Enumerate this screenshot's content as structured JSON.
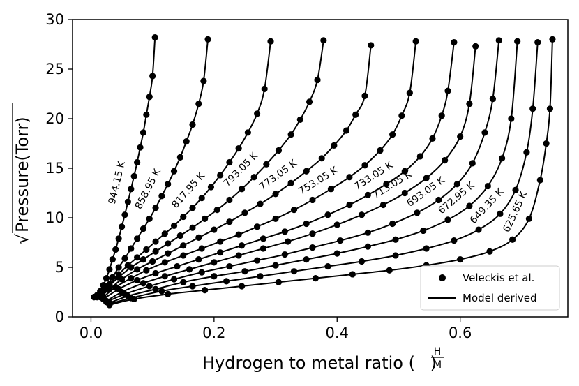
{
  "chart_data": {
    "type": "scatter",
    "title": "",
    "xlabel_prefix": "Hydrogen to metal ratio (",
    "xlabel_frac_num": "H",
    "xlabel_frac_den": "M",
    "xlabel_suffix": ")",
    "ylabel_radical": "√",
    "ylabel_body": "Pressure(Torr)",
    "xlim": [
      -0.03,
      0.775
    ],
    "ylim": [
      0,
      30
    ],
    "x_ticks": [
      0.0,
      0.2,
      0.4,
      0.6
    ],
    "x_tick_labels": [
      "0.0",
      "0.2",
      "0.4",
      "0.6"
    ],
    "y_ticks": [
      0,
      5,
      10,
      15,
      20,
      25,
      30
    ],
    "y_tick_labels": [
      "0",
      "5",
      "10",
      "15",
      "20",
      "25",
      "30"
    ],
    "grid": false,
    "legend": {
      "placement": "lower-right",
      "entries": [
        {
          "label": "Veleckis et al.",
          "marker": "circle"
        },
        {
          "label": "Model derived",
          "marker": "line"
        }
      ]
    },
    "series": [
      {
        "name": "944.15 K",
        "x": [
          0.005,
          0.01,
          0.015,
          0.02,
          0.025,
          0.03,
          0.035,
          0.04,
          0.045,
          0.05,
          0.055,
          0.06,
          0.065,
          0.07,
          0.075,
          0.08,
          0.085,
          0.09,
          0.095,
          0.1,
          0.104
        ],
        "y": [
          2.0,
          2.2,
          2.6,
          3.2,
          3.9,
          4.8,
          5.8,
          6.8,
          7.9,
          9.1,
          10.3,
          11.6,
          12.9,
          14.2,
          15.6,
          17.1,
          18.6,
          20.4,
          22.2,
          24.3,
          28.2
        ]
      },
      {
        "name": "858.95 K",
        "x": [
          0.005,
          0.015,
          0.025,
          0.035,
          0.045,
          0.055,
          0.065,
          0.075,
          0.085,
          0.095,
          0.105,
          0.115,
          0.125,
          0.135,
          0.145,
          0.155,
          0.165,
          0.175,
          0.183,
          0.19
        ],
        "y": [
          2.0,
          2.3,
          3.1,
          4.0,
          5.0,
          5.9,
          6.9,
          7.9,
          8.9,
          9.9,
          11.0,
          12.2,
          13.4,
          14.7,
          16.1,
          17.7,
          19.4,
          21.5,
          23.8,
          28.0
        ]
      },
      {
        "name": "817.95 K",
        "x": [
          0.01,
          0.02,
          0.03,
          0.045,
          0.06,
          0.075,
          0.09,
          0.105,
          0.12,
          0.135,
          0.15,
          0.165,
          0.18,
          0.195,
          0.21,
          0.225,
          0.24,
          0.255,
          0.27,
          0.282,
          0.292
        ],
        "y": [
          2.0,
          2.6,
          3.3,
          4.3,
          5.2,
          6.0,
          6.8,
          7.6,
          8.4,
          9.2,
          10.1,
          11.0,
          12.0,
          13.1,
          14.3,
          15.6,
          17.0,
          18.6,
          20.5,
          23.0,
          27.8
        ]
      },
      {
        "name": "793.05 K",
        "x": [
          0.01,
          0.025,
          0.045,
          0.065,
          0.085,
          0.105,
          0.125,
          0.145,
          0.165,
          0.185,
          0.205,
          0.225,
          0.245,
          0.265,
          0.285,
          0.305,
          0.325,
          0.34,
          0.355,
          0.368,
          0.378
        ],
        "y": [
          2.0,
          2.9,
          4.0,
          5.0,
          5.8,
          6.6,
          7.4,
          8.2,
          9.0,
          9.9,
          10.8,
          11.8,
          12.9,
          14.1,
          15.4,
          16.8,
          18.4,
          19.9,
          21.7,
          23.9,
          27.9
        ]
      },
      {
        "name": "773.05 K",
        "x": [
          0.015,
          0.03,
          0.05,
          0.075,
          0.1,
          0.125,
          0.15,
          0.175,
          0.2,
          0.225,
          0.25,
          0.275,
          0.3,
          0.325,
          0.35,
          0.375,
          0.395,
          0.415,
          0.43,
          0.445,
          0.455
        ],
        "y": [
          2.0,
          2.8,
          3.8,
          4.8,
          5.6,
          6.4,
          7.2,
          8.0,
          8.8,
          9.6,
          10.5,
          11.4,
          12.4,
          13.5,
          14.7,
          16.0,
          17.3,
          18.8,
          20.4,
          22.3,
          27.4
        ]
      },
      {
        "name": "753.05 K",
        "x": [
          0.02,
          0.04,
          0.065,
          0.09,
          0.12,
          0.15,
          0.18,
          0.21,
          0.24,
          0.27,
          0.3,
          0.33,
          0.36,
          0.39,
          0.42,
          0.445,
          0.47,
          0.49,
          0.505,
          0.518,
          0.528
        ],
        "y": [
          2.0,
          3.0,
          3.9,
          4.7,
          5.5,
          6.2,
          6.9,
          7.6,
          8.3,
          9.1,
          9.9,
          10.8,
          11.8,
          12.9,
          14.1,
          15.3,
          16.8,
          18.4,
          20.3,
          22.6,
          27.8
        ]
      },
      {
        "name": "733.05 K",
        "x": [
          0.02,
          0.045,
          0.075,
          0.105,
          0.14,
          0.175,
          0.21,
          0.245,
          0.28,
          0.315,
          0.35,
          0.385,
          0.42,
          0.45,
          0.48,
          0.51,
          0.535,
          0.555,
          0.57,
          0.58,
          0.59
        ],
        "y": [
          1.8,
          2.8,
          3.7,
          4.4,
          5.1,
          5.8,
          6.5,
          7.2,
          7.9,
          8.6,
          9.4,
          10.3,
          11.3,
          12.3,
          13.4,
          14.7,
          16.2,
          18.0,
          20.3,
          22.8,
          27.7
        ]
      },
      {
        "name": "713.05 K",
        "x": [
          0.025,
          0.05,
          0.085,
          0.12,
          0.16,
          0.2,
          0.24,
          0.28,
          0.32,
          0.36,
          0.4,
          0.44,
          0.475,
          0.51,
          0.545,
          0.575,
          0.6,
          0.615,
          0.625
        ],
        "y": [
          1.6,
          2.5,
          3.4,
          4.1,
          4.8,
          5.5,
          6.2,
          6.9,
          7.6,
          8.4,
          9.3,
          10.3,
          11.3,
          12.5,
          14.0,
          15.8,
          18.2,
          21.5,
          27.3
        ]
      },
      {
        "name": "693.05 K",
        "x": [
          0.025,
          0.055,
          0.095,
          0.135,
          0.18,
          0.225,
          0.27,
          0.315,
          0.36,
          0.405,
          0.45,
          0.49,
          0.53,
          0.565,
          0.595,
          0.62,
          0.64,
          0.653,
          0.663
        ],
        "y": [
          1.5,
          2.3,
          3.1,
          3.8,
          4.5,
          5.1,
          5.7,
          6.3,
          7.0,
          7.7,
          8.5,
          9.4,
          10.5,
          11.8,
          13.4,
          15.5,
          18.6,
          22.0,
          27.9
        ]
      },
      {
        "name": "672.95 K",
        "x": [
          0.03,
          0.06,
          0.105,
          0.15,
          0.2,
          0.25,
          0.3,
          0.35,
          0.4,
          0.45,
          0.495,
          0.54,
          0.58,
          0.615,
          0.645,
          0.668,
          0.683,
          0.693
        ],
        "y": [
          1.4,
          2.1,
          2.8,
          3.5,
          4.1,
          4.6,
          5.2,
          5.8,
          6.4,
          7.1,
          7.8,
          8.7,
          9.8,
          11.2,
          13.2,
          16.0,
          20.0,
          27.8
        ]
      },
      {
        "name": "649.35 K",
        "x": [
          0.03,
          0.065,
          0.115,
          0.165,
          0.22,
          0.275,
          0.33,
          0.385,
          0.44,
          0.495,
          0.545,
          0.59,
          0.63,
          0.665,
          0.69,
          0.708,
          0.718,
          0.726
        ],
        "y": [
          1.3,
          1.9,
          2.6,
          3.1,
          3.6,
          4.1,
          4.6,
          5.1,
          5.6,
          6.2,
          6.9,
          7.7,
          8.8,
          10.4,
          12.8,
          16.6,
          21.0,
          27.7
        ]
      },
      {
        "name": "625.65 K",
        "x": [
          0.03,
          0.07,
          0.125,
          0.185,
          0.245,
          0.305,
          0.365,
          0.425,
          0.485,
          0.545,
          0.6,
          0.648,
          0.685,
          0.712,
          0.73,
          0.74,
          0.746,
          0.75
        ],
        "y": [
          1.2,
          1.8,
          2.3,
          2.7,
          3.1,
          3.5,
          3.9,
          4.3,
          4.7,
          5.2,
          5.8,
          6.6,
          7.8,
          9.9,
          13.8,
          17.5,
          21.0,
          28.0
        ]
      }
    ]
  }
}
